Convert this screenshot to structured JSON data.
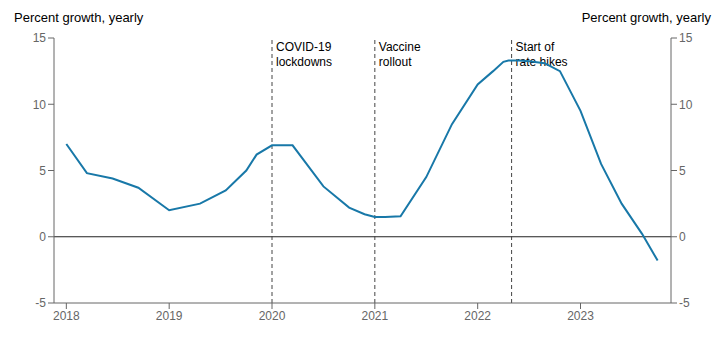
{
  "chart_data": {
    "type": "line",
    "x": [
      2018.0,
      2018.2,
      2018.45,
      2018.7,
      2019.0,
      2019.3,
      2019.55,
      2019.75,
      2019.85,
      2020.0,
      2020.2,
      2020.5,
      2020.75,
      2020.9,
      2021.0,
      2021.1,
      2021.25,
      2021.5,
      2021.75,
      2022.0,
      2022.15,
      2022.25,
      2022.3,
      2022.4,
      2022.5,
      2022.65,
      2022.8,
      2023.0,
      2023.2,
      2023.4,
      2023.6,
      2023.75
    ],
    "values": [
      7.0,
      4.8,
      4.4,
      3.7,
      2.0,
      2.5,
      3.5,
      5.0,
      6.2,
      6.9,
      6.9,
      3.8,
      2.2,
      1.7,
      1.5,
      1.5,
      1.55,
      4.5,
      8.5,
      11.5,
      12.5,
      13.2,
      13.3,
      13.3,
      13.25,
      13.1,
      12.5,
      9.5,
      5.5,
      2.5,
      0.2,
      -1.8
    ],
    "color": "#1878a8",
    "xlim": [
      2017.88,
      2023.88
    ],
    "xticks": [
      2018,
      2019,
      2020,
      2021,
      2022,
      2023
    ],
    "ylim": [
      -5,
      15
    ],
    "yticks": [
      -5,
      0,
      5,
      10,
      15
    ],
    "y2lim": [
      -5,
      15
    ],
    "y2ticks": [
      -5,
      0,
      5,
      10,
      15
    ],
    "ylabel": "Percent growth, yearly",
    "y2label": "Percent growth, yearly",
    "annotations": [
      {
        "x": 2020.0,
        "text": "COVID-19\nlockdowns"
      },
      {
        "x": 2021.0,
        "text": "Vaccine\nrollout"
      },
      {
        "x": 2022.33,
        "text": "Start of\nrate hikes"
      }
    ],
    "reference_lines": [
      {
        "y": 0
      }
    ],
    "grid": false
  }
}
